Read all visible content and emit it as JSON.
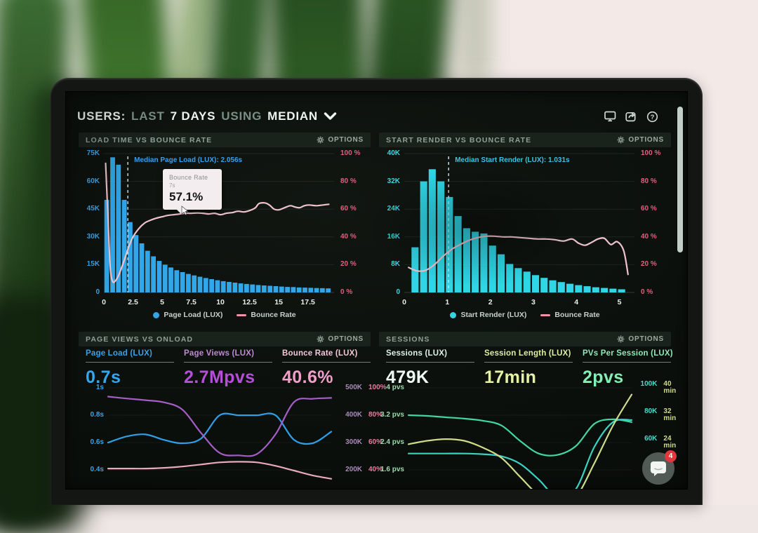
{
  "header": {
    "title_parts": [
      {
        "text": "USERS:",
        "muted": false
      },
      {
        "text": "LAST",
        "muted": true
      },
      {
        "text": "7 DAYS",
        "muted": false
      },
      {
        "text": "USING",
        "muted": true
      },
      {
        "text": "MEDIAN",
        "muted": false
      }
    ],
    "icons": [
      "display-icon",
      "share-icon",
      "help-icon"
    ]
  },
  "options_label": "OPTIONS",
  "chat": {
    "badge": "4"
  },
  "colors": {
    "header_text": "#eef4f0",
    "header_muted": "#7b8e83",
    "panel_title": "#8fa096",
    "scrollbar": "#c2cfc6",
    "badge_red": "#e5363f"
  },
  "chart_data": [
    {
      "id": "load-time-vs-bounce-rate",
      "type": "histogram+line",
      "title": "LOAD TIME VS BOUNCE RATE",
      "xlim": [
        0,
        19.75
      ],
      "x_ticks": [
        {
          "label": "0",
          "v": 0
        },
        {
          "label": "2.5",
          "v": 2.5
        },
        {
          "label": "5",
          "v": 5
        },
        {
          "label": "7.5",
          "v": 7.5
        },
        {
          "label": "10",
          "v": 10
        },
        {
          "label": "12.5",
          "v": 12.5
        },
        {
          "label": "15",
          "v": 15
        },
        {
          "label": "17.5",
          "v": 17.5
        }
      ],
      "left_axis": {
        "color": "#3ea6ea",
        "lim": [
          0,
          75000
        ],
        "ticks": [
          {
            "label": "0",
            "v": 0
          },
          {
            "label": "15K",
            "v": 15000
          },
          {
            "label": "30K",
            "v": 30000
          },
          {
            "label": "45K",
            "v": 45000
          },
          {
            "label": "60K",
            "v": 60000
          },
          {
            "label": "75K",
            "v": 75000
          }
        ]
      },
      "right_axis": {
        "color": "#e0607f",
        "lim": [
          0,
          100
        ],
        "ticks": [
          {
            "label": "0 %",
            "v": 0
          },
          {
            "label": "20 %",
            "v": 20
          },
          {
            "label": "40 %",
            "v": 40
          },
          {
            "label": "60 %",
            "v": 60
          },
          {
            "label": "80 %",
            "v": 80
          },
          {
            "label": "100 %",
            "v": 100
          }
        ]
      },
      "bars": {
        "name": "Page Load (LUX)",
        "color": "#31a7ea",
        "x_start": 0.25,
        "x_step": 0.5,
        "values": [
          50000,
          73000,
          69000,
          50000,
          38000,
          31000,
          26500,
          22500,
          19500,
          17000,
          15000,
          13500,
          12000,
          11000,
          10000,
          9200,
          8500,
          7800,
          7200,
          6600,
          6100,
          5700,
          5300,
          4900,
          4600,
          4300,
          4000,
          3800,
          3600,
          3400,
          3200,
          3000,
          2900,
          2700,
          2600,
          2500,
          2400,
          2300,
          2200
        ]
      },
      "line": {
        "name": "Bounce Rate",
        "color": "#eec3cd",
        "points": [
          [
            0.15,
            93
          ],
          [
            0.35,
            55
          ],
          [
            0.55,
            18
          ],
          [
            0.75,
            8
          ],
          [
            1.0,
            8.5
          ],
          [
            1.3,
            13
          ],
          [
            1.7,
            22
          ],
          [
            2.1,
            32
          ],
          [
            2.5,
            40
          ],
          [
            3.0,
            46
          ],
          [
            3.5,
            50
          ],
          [
            4.0,
            52
          ],
          [
            4.5,
            53.5
          ],
          [
            5.0,
            54.5
          ],
          [
            5.5,
            55.5
          ],
          [
            6.0,
            56
          ],
          [
            6.5,
            56.5
          ],
          [
            7.0,
            57.1
          ],
          [
            7.5,
            57
          ],
          [
            8.0,
            57.2
          ],
          [
            8.5,
            57
          ],
          [
            9.0,
            56.5
          ],
          [
            9.5,
            57
          ],
          [
            10.0,
            56
          ],
          [
            10.5,
            57
          ],
          [
            11.0,
            57.5
          ],
          [
            11.5,
            58.5
          ],
          [
            12.0,
            58
          ],
          [
            12.5,
            59
          ],
          [
            13.0,
            61
          ],
          [
            13.3,
            64
          ],
          [
            13.8,
            64.5
          ],
          [
            14.2,
            63
          ],
          [
            14.6,
            60
          ],
          [
            15.0,
            59.5
          ],
          [
            15.5,
            61
          ],
          [
            16.0,
            62.5
          ],
          [
            16.4,
            61.5
          ],
          [
            16.8,
            61
          ],
          [
            17.2,
            62.5
          ],
          [
            17.6,
            63
          ],
          [
            18.2,
            62.5
          ],
          [
            18.8,
            63
          ],
          [
            19.3,
            63.5
          ]
        ]
      },
      "median": {
        "label": "Median Page Load (LUX): 2.056s",
        "v": 2.056,
        "color": "#3aa0ee"
      },
      "tooltip": {
        "series": "Bounce Rate",
        "x": "7s",
        "value": "57.1%"
      },
      "legend": [
        {
          "label": "Page Load (LUX)",
          "color": "#31a7ea",
          "marker": "dot"
        },
        {
          "label": "Bounce Rate",
          "color": "#ef93ad",
          "marker": "line"
        }
      ]
    },
    {
      "id": "start-render-vs-bounce-rate",
      "type": "histogram+line",
      "title": "START RENDER VS BOUNCE RATE",
      "xlim": [
        0,
        5.35
      ],
      "x_ticks": [
        {
          "label": "0",
          "v": 0
        },
        {
          "label": "1",
          "v": 1
        },
        {
          "label": "2",
          "v": 2
        },
        {
          "label": "3",
          "v": 3
        },
        {
          "label": "4",
          "v": 4
        },
        {
          "label": "5",
          "v": 5
        }
      ],
      "left_axis": {
        "color": "#43d4e4",
        "lim": [
          0,
          40000
        ],
        "ticks": [
          {
            "label": "0",
            "v": 0
          },
          {
            "label": "8K",
            "v": 8000
          },
          {
            "label": "16K",
            "v": 16000
          },
          {
            "label": "24K",
            "v": 24000
          },
          {
            "label": "32K",
            "v": 32000
          },
          {
            "label": "40K",
            "v": 40000
          }
        ]
      },
      "right_axis": {
        "color": "#e0607f",
        "lim": [
          0,
          100
        ],
        "ticks": [
          {
            "label": "0 %",
            "v": 0
          },
          {
            "label": "20 %",
            "v": 20
          },
          {
            "label": "40 %",
            "v": 40
          },
          {
            "label": "60 %",
            "v": 60
          },
          {
            "label": "80 %",
            "v": 80
          },
          {
            "label": "100 %",
            "v": 100
          }
        ]
      },
      "bars": {
        "name": "Start Render (LUX)",
        "color": "#30d6e6",
        "x_start": 0.25,
        "x_step": 0.2,
        "values": [
          13000,
          32000,
          35500,
          32000,
          27500,
          22000,
          18500,
          17500,
          17000,
          13500,
          11000,
          8200,
          7000,
          6000,
          5000,
          4200,
          3500,
          3000,
          2500,
          2100,
          1800,
          1500,
          1300,
          1100,
          900
        ]
      },
      "line": {
        "name": "Bounce Rate",
        "color": "#eec3cd",
        "points": [
          [
            0.1,
            18
          ],
          [
            0.3,
            15.5
          ],
          [
            0.5,
            16
          ],
          [
            0.7,
            20
          ],
          [
            0.9,
            26
          ],
          [
            1.1,
            31
          ],
          [
            1.3,
            34.5
          ],
          [
            1.5,
            37.5
          ],
          [
            1.7,
            39.5
          ],
          [
            1.9,
            40.5
          ],
          [
            2.1,
            40.5
          ],
          [
            2.3,
            40
          ],
          [
            2.5,
            40
          ],
          [
            2.7,
            39.5
          ],
          [
            2.9,
            39
          ],
          [
            3.1,
            38.5
          ],
          [
            3.3,
            38.5
          ],
          [
            3.5,
            38
          ],
          [
            3.7,
            37
          ],
          [
            3.9,
            38.5
          ],
          [
            4.05,
            35.5
          ],
          [
            4.2,
            34
          ],
          [
            4.35,
            36
          ],
          [
            4.5,
            38.5
          ],
          [
            4.65,
            39
          ],
          [
            4.8,
            34.5
          ],
          [
            4.95,
            36.5
          ],
          [
            5.1,
            30
          ],
          [
            5.2,
            13
          ]
        ]
      },
      "median": {
        "label": "Median Start Render (LUX): 1.031s",
        "v": 1.031,
        "color": "#3cc2e6"
      },
      "legend": [
        {
          "label": "Start Render (LUX)",
          "color": "#35d2e2",
          "marker": "dot"
        },
        {
          "label": "Bounce Rate",
          "color": "#ef93ad",
          "marker": "line"
        }
      ]
    },
    {
      "id": "page-views-vs-onload",
      "type": "line",
      "title": "PAGE VIEWS VS ONLOAD",
      "metrics": [
        {
          "label": "Page Load (LUX)",
          "value": "0.7s",
          "label_color": "#3aa3e8",
          "value_color": "#35a7ee"
        },
        {
          "label": "Page Views (LUX)",
          "value": "2.7Mpvs",
          "label_color": "#c08ad2",
          "value_color": "#b44fd6"
        },
        {
          "label": "Bounce Rate (LUX)",
          "value": "40.6%",
          "label_color": "#f5c6da",
          "value_color": "#f09fc8"
        }
      ],
      "left_axis": {
        "color": "#3aa3e8",
        "lim": [
          0.185,
          1.031
        ],
        "ticks": [
          {
            "label": "1s",
            "v": 1.0
          },
          {
            "label": "0.8s",
            "v": 0.8
          },
          {
            "label": "0.6s",
            "v": 0.6
          },
          {
            "label": "0.4s",
            "v": 0.4
          }
        ]
      },
      "right_rows": {
        "colors": [
          "#a98bb8",
          "#e77e9e"
        ],
        "rows": [
          [
            "500K",
            "100%"
          ],
          [
            "400K",
            "80%"
          ],
          [
            "300K",
            "60%"
          ],
          [
            "200K",
            "40%"
          ]
        ]
      },
      "series": [
        {
          "name": "Page Load (LUX)",
          "unit": "s",
          "color": "#2f9fe8",
          "lim": [
            0.185,
            1.031
          ],
          "values": [
            0.6,
            0.645,
            0.66,
            0.62,
            0.595,
            0.63,
            0.8,
            0.8,
            0.8,
            0.8,
            0.62,
            0.595,
            0.68
          ]
        },
        {
          "name": "Page Views (LUX)",
          "unit": "K pvs",
          "color": "#a55ec6",
          "lim": [
            92.3,
            515.4
          ],
          "values": [
            468,
            461,
            455,
            447,
            420,
            335,
            262,
            253,
            258,
            330,
            448,
            460,
            463
          ]
        },
        {
          "name": "Bounce Rate (LUX)",
          "unit": "%",
          "color": "#e8a9bc",
          "lim": [
            18.5,
            103.1
          ],
          "values": [
            41,
            41,
            41,
            41.5,
            42.5,
            44,
            45.5,
            46,
            45.5,
            43,
            39.5,
            36,
            33.5
          ]
        }
      ]
    },
    {
      "id": "sessions",
      "type": "line",
      "title": "SESSIONS",
      "metrics": [
        {
          "label": "Sessions (LUX)",
          "value": "479K",
          "label_color": "#ddf2e6",
          "value_color": "#eef9f1"
        },
        {
          "label": "Session Length (LUX)",
          "value": "17min",
          "label_color": "#dff0a0",
          "value_color": "#e4f2a8"
        },
        {
          "label": "PVs Per Session (LUX)",
          "value": "2pvs",
          "label_color": "#8fe8b8",
          "value_color": "#82f0b4"
        }
      ],
      "left_axis": {
        "color": "#9fd9ad",
        "lim": [
          0.742,
          4.123
        ],
        "ticks": [
          {
            "label": "4 pvs",
            "v": 4.0
          },
          {
            "label": "3.2 pvs",
            "v": 3.2
          },
          {
            "label": "2.4 pvs",
            "v": 2.4
          },
          {
            "label": "1.6 pvs",
            "v": 1.6
          }
        ]
      },
      "right_rows": {
        "colors": [
          "#4fd9cf",
          "#ccdc8a"
        ],
        "rows": [
          [
            "100K",
            "40 min"
          ],
          [
            "80K",
            "32 min"
          ],
          [
            "60K",
            "24 min"
          ],
          [
            "40K",
            ""
          ]
        ]
      },
      "series": [
        {
          "name": "PVs Per Session (LUX)",
          "unit": "pvs",
          "color": "#43d6a0",
          "lim": [
            0.742,
            4.123
          ],
          "values": [
            3.2,
            3.18,
            3.14,
            3.1,
            3.04,
            2.9,
            2.45,
            2.08,
            2.04,
            2.3,
            2.95,
            3.08,
            3.0
          ]
        },
        {
          "name": "Sessions (LUX)",
          "unit": "K",
          "color": "#3ad2c3",
          "lim": [
            18.5,
            103.1
          ],
          "values": [
            52,
            52,
            52,
            52,
            51.5,
            50,
            44.5,
            33,
            20,
            26,
            57,
            75,
            76.5
          ]
        },
        {
          "name": "Session Length (LUX)",
          "unit": "min",
          "color": "#ccdc8a",
          "lim": [
            7.4,
            41.2
          ],
          "values": [
            23.5,
            24.5,
            25,
            24.5,
            22.5,
            19.5,
            14,
            8.5,
            5,
            8,
            18,
            29,
            38
          ]
        }
      ]
    }
  ]
}
